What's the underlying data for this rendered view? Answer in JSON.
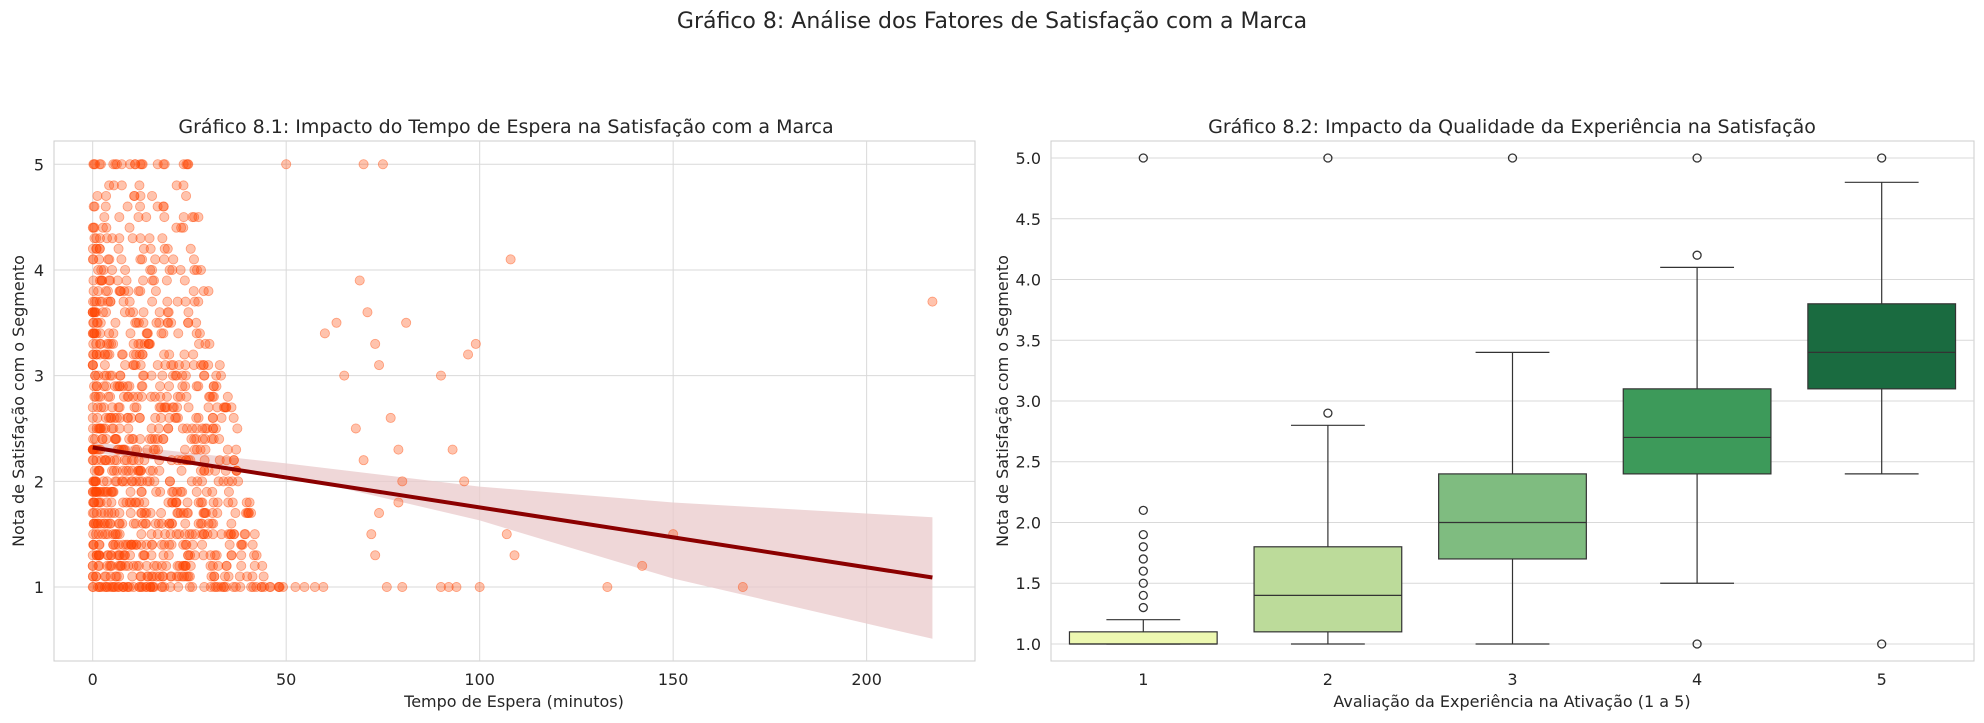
{
  "figure": {
    "title": "Gráfico 8: Análise dos Fatores de Satisfação com a Marca"
  },
  "chart_data": [
    {
      "type": "scatter",
      "title": "Gráfico 8.1: Impacto do Tempo de Espera na Satisfação com a Marca",
      "xlabel": "Tempo de Espera (minutos)",
      "ylabel": "Nota de Satisfação com o Segmento",
      "xlim": [
        -10,
        228
      ],
      "ylim": [
        0.3,
        5.22
      ],
      "xticks": [
        0,
        50,
        100,
        150,
        200
      ],
      "yticks": [
        1,
        2,
        3,
        4,
        5
      ],
      "grid": true,
      "point_color": "#ff4500",
      "regression": {
        "color": "#8b0000",
        "band_color": "#e9c9cb",
        "x": [
          0,
          217
        ],
        "y": [
          2.32,
          1.09
        ],
        "band_lower": [
          [
            0,
            2.27
          ],
          [
            50,
            2.06
          ],
          [
            100,
            1.63
          ],
          [
            150,
            1.08
          ],
          [
            217,
            0.51
          ]
        ],
        "band_upper": [
          [
            0,
            2.37
          ],
          [
            50,
            2.17
          ],
          [
            100,
            1.95
          ],
          [
            150,
            1.8
          ],
          [
            217,
            1.66
          ]
        ]
      },
      "highlight_points": [
        [
          108,
          4.1
        ],
        [
          217,
          3.7
        ],
        [
          133,
          1.0
        ],
        [
          142,
          1.2
        ],
        [
          150,
          1.5
        ],
        [
          168,
          1.0
        ],
        [
          107,
          1.5
        ],
        [
          109,
          1.3
        ],
        [
          99,
          3.3
        ],
        [
          97,
          3.2
        ],
        [
          90,
          3.0
        ],
        [
          93,
          2.3
        ],
        [
          96,
          2.0
        ],
        [
          90,
          1.0
        ],
        [
          92,
          1.0
        ],
        [
          94,
          1.0
        ],
        [
          100,
          1.0
        ],
        [
          69,
          3.9
        ],
        [
          71,
          3.6
        ],
        [
          73,
          3.3
        ],
        [
          74,
          3.1
        ],
        [
          81,
          3.5
        ],
        [
          50,
          5.0
        ],
        [
          70,
          5.0
        ],
        [
          75,
          5.0
        ],
        [
          77,
          2.6
        ],
        [
          79,
          2.3
        ],
        [
          80,
          2.0
        ],
        [
          79,
          1.8
        ],
        [
          76,
          1.0
        ],
        [
          80,
          1.0
        ],
        [
          72,
          1.5
        ],
        [
          73,
          1.3
        ],
        [
          74,
          1.7
        ],
        [
          63,
          3.5
        ],
        [
          60,
          3.4
        ],
        [
          65,
          3.0
        ],
        [
          68,
          2.5
        ],
        [
          70,
          2.2
        ]
      ],
      "dense_cluster": {
        "x_range": [
          0,
          45
        ],
        "y_range": [
          1,
          5
        ],
        "note_values": [
          1.0,
          1.1,
          1.2,
          1.3,
          1.4,
          1.5,
          1.6,
          1.7,
          1.8,
          1.9,
          2.0,
          2.1,
          2.2,
          2.3,
          2.4,
          2.5,
          2.6,
          2.7,
          2.8,
          2.9,
          3.0,
          3.1,
          3.2,
          3.3,
          3.4,
          3.5,
          3.6,
          3.7,
          3.8,
          3.9,
          4.0,
          4.1,
          4.2,
          4.3,
          4.4,
          4.5,
          4.6,
          4.7,
          4.8,
          5.0
        ]
      }
    },
    {
      "type": "box",
      "title": "Gráfico 8.2: Impacto da Qualidade da Experiência na Satisfação",
      "xlabel": "Avaliação da Experiência na Ativação (1 a 5)",
      "ylabel": "Nota de Satisfação com o Segmento",
      "categories": [
        "1",
        "2",
        "3",
        "4",
        "5"
      ],
      "ylim": [
        0.86,
        5.14
      ],
      "yticks": [
        1.0,
        1.5,
        2.0,
        2.5,
        3.0,
        3.5,
        4.0,
        4.5,
        5.0
      ],
      "ytick_labels": [
        "1.0",
        "1.5",
        "2.0",
        "2.5",
        "3.0",
        "3.5",
        "4.0",
        "4.5",
        "5.0"
      ],
      "grid": true,
      "boxes": [
        {
          "category": "1",
          "q1": 1.0,
          "median": 1.0,
          "q3": 1.1,
          "whisker_low": 1.0,
          "whisker_high": 1.2,
          "outliers": [
            1.3,
            1.4,
            1.5,
            1.6,
            1.7,
            1.8,
            1.9,
            2.1,
            5.0
          ],
          "color": "#edf8b1"
        },
        {
          "category": "2",
          "q1": 1.1,
          "median": 1.4,
          "q3": 1.8,
          "whisker_low": 1.0,
          "whisker_high": 2.8,
          "outliers": [
            2.9,
            5.0
          ],
          "color": "#bcdb9a"
        },
        {
          "category": "3",
          "q1": 1.7,
          "median": 2.0,
          "q3": 2.4,
          "whisker_low": 1.0,
          "whisker_high": 3.4,
          "outliers": [
            5.0
          ],
          "color": "#7fbc80"
        },
        {
          "category": "4",
          "q1": 2.4,
          "median": 2.7,
          "q3": 3.1,
          "whisker_low": 1.5,
          "whisker_high": 4.1,
          "outliers": [
            1.0,
            4.2,
            5.0
          ],
          "color": "#3d9a5a"
        },
        {
          "category": "5",
          "q1": 3.1,
          "median": 3.4,
          "q3": 3.8,
          "whisker_low": 2.4,
          "whisker_high": 4.8,
          "outliers": [
            1.0,
            5.0
          ],
          "color": "#1a6b40"
        }
      ]
    }
  ]
}
